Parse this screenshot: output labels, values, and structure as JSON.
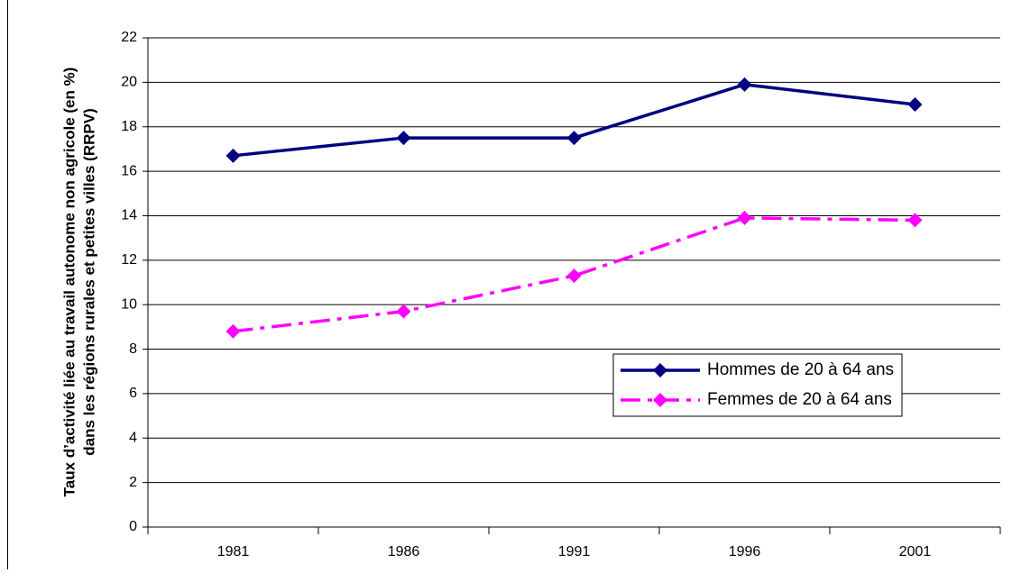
{
  "chart_data": {
    "type": "line",
    "ylabel": [
      "Taux d’activité liée au travail autonome non agricole (en %)",
      "dans les régions rurales et petites villes (RRPV)"
    ],
    "categories": [
      "1981",
      "1986",
      "1991",
      "1996",
      "2001"
    ],
    "series": [
      {
        "name": "Hommes de 20 à 64 ans",
        "color": "#000080",
        "dash": "solid",
        "values": [
          16.7,
          17.5,
          17.5,
          19.9,
          19.0
        ]
      },
      {
        "name": "Femmes de 20 à 64 ans",
        "color": "#ff00ff",
        "dash": "dashdot",
        "values": [
          8.8,
          9.7,
          11.3,
          13.9,
          13.8
        ]
      }
    ],
    "ylim": [
      0,
      22
    ],
    "yticks": [
      0,
      2,
      4,
      6,
      8,
      10,
      12,
      14,
      16,
      18,
      20,
      22
    ],
    "grid": true,
    "legend": "right"
  }
}
